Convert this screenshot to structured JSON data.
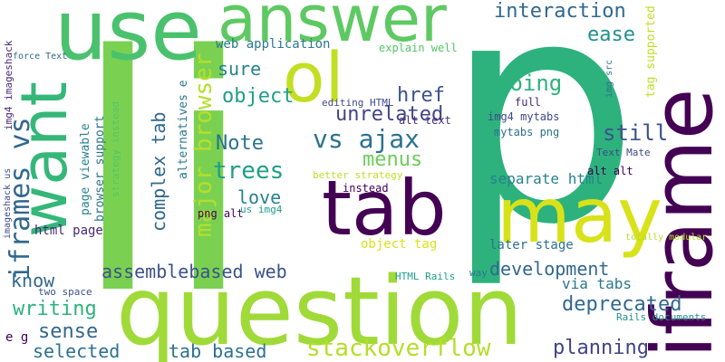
{
  "wordcloud": {
    "words": {
      "p": "p",
      "li": "li",
      "question": "question",
      "iframe": "iframe",
      "answer": "answer",
      "use": "use",
      "want": "want",
      "tab": "tab",
      "may": "may",
      "ol": "ol",
      "vs_ajax": "vs ajax",
      "iframes_vs": "iframes vs",
      "interaction": "interaction",
      "tag_supported": "tag supported",
      "ease": "ease",
      "web_application": "web application",
      "explain_well": "explain well",
      "href": "href",
      "going": "going",
      "sure": "sure",
      "major_browser": "major browser",
      "object": "object",
      "unrelated": "unrelated",
      "still": "still",
      "img4_mytabs": "img4 mytabs",
      "mytabs_png": "mytabs png",
      "full": "full",
      "alt_text": "alt text",
      "editing_html": "editing HTML",
      "note": "Note",
      "menus": "menus",
      "complex_tab": "complex tab",
      "trees": "trees",
      "separate_html": "separate html",
      "better_strategy": "better strategy",
      "instead": "instead",
      "alt_alt": "alt alt",
      "text_mate": "Text Mate",
      "png_alt": "png alt",
      "love": "love",
      "us_img4": "us img4",
      "html_page": "html page",
      "page_viewable": "page viewable",
      "browser_support": "browser support",
      "strategy_instead": "strategy instead",
      "alternatives_e": "alternatives e",
      "img4_imageshack": "img4 imageshack",
      "force_text": "force Text",
      "imageshack_us": "imageshack us",
      "later_stage": "later stage",
      "totally_modular": "totally modular",
      "object_tag": "object tag",
      "assemblebased_web": "assemblebased web",
      "development": "development",
      "know": "know",
      "html_rails": "HTML Rails",
      "way": "way",
      "via_tabs": "via tabs",
      "two_space": "two space",
      "writing": "writing",
      "deprecated": "deprecated",
      "rails_documents": "Rails documents",
      "sense": "sense",
      "e_g": "e g",
      "stackoverflow": "stackoverflow",
      "selected": "selected",
      "tab_based": "tab based",
      "planning": "planning",
      "img_src": "img src"
    }
  }
}
